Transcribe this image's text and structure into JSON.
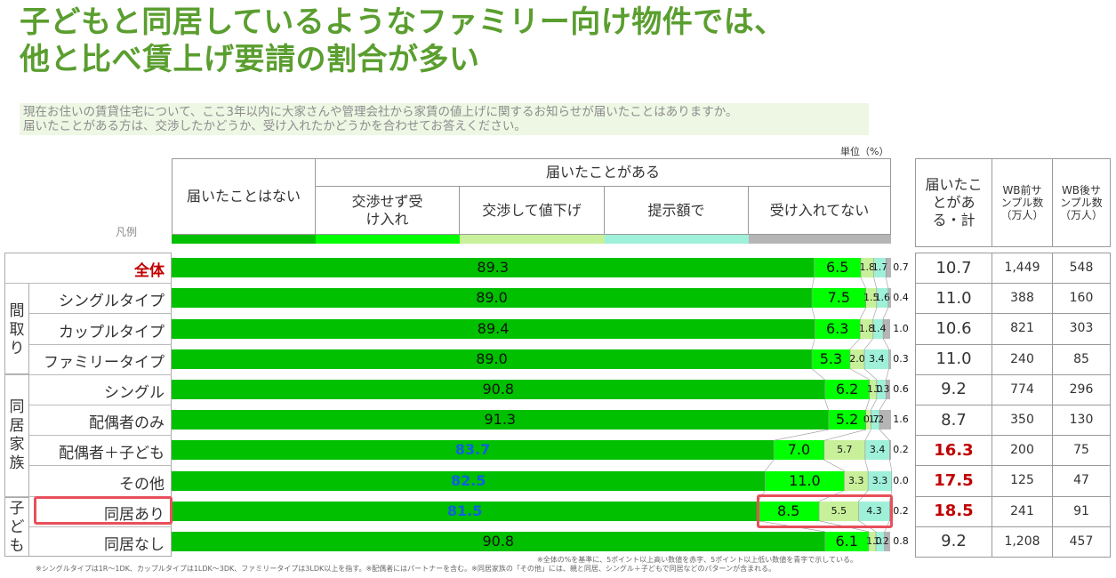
{
  "title_line1": "子どもと同居しているようなファミリー向け物件では、",
  "title_line2": "他と比べ賃上げ要請の割合が多い",
  "subtitle_line1": "現在お住いの賃貸住宅について、ここ3年以内に大家さんや管理会社から家賃の値上げに関するお知らせが届いたことはありますか。",
  "subtitle_line2": "届いたことがある方は、交渉したかどうか、受け入れたかどうかを合わせてお答えください。",
  "unit": "単位（%）",
  "legend_label": "凡例",
  "headers": {
    "not_received": "届いたことはない",
    "received": "届いたことがある",
    "accepted": "交渉せず受け入れ",
    "reduced": "交渉して値下げ",
    "offered": "提示額で",
    "not_accepted": "受け入れてない"
  },
  "table_headers": {
    "total": "届いたことがある・計",
    "before": "WB前サンプル数（万人）",
    "after": "WB後サンプル数（万人）"
  },
  "groups": [
    {
      "label": "間取り"
    },
    {
      "label": "同居家族"
    },
    {
      "label": "子ども"
    }
  ],
  "colors": {
    "not_received": "#00c000",
    "accepted": "#00ff00",
    "reduced": "#c8f09a",
    "offered": "#9ff0d8",
    "not_accepted": "#b5b5b5",
    "highlight": "#e8505b",
    "red_text": "#c00000",
    "blue_text": "#1060e0",
    "title": "#5a9e2f"
  },
  "notes": {
    "note1": "※全体の%を基準に、5ポイント以上高い数値を赤字、5ポイント以上低い数値を青字で示している。",
    "note2": "※シングルタイプは1R〜1DK、カップルタイプは1LDK〜3DK、ファミリータイプは3LDK以上を指す。※配偶者にはパートナーを含む。※同居家族の「その他」には、親と同居、シングル＋子どもで同居などのパターンが含まれる。"
  },
  "chart_data": {
    "type": "bar",
    "stacked": true,
    "xlim": [
      0,
      100
    ],
    "categories": [
      "全体",
      "シングルタイプ",
      "カップルタイプ",
      "ファミリータイプ",
      "シングル",
      "配偶者のみ",
      "配偶者＋子ども",
      "その他",
      "同居あり",
      "同居なし"
    ],
    "series": [
      {
        "name": "届いたことはない",
        "values": [
          89.3,
          89.0,
          89.4,
          89.0,
          90.8,
          91.3,
          83.7,
          82.5,
          81.5,
          90.8
        ]
      },
      {
        "name": "交渉せず受け入れ",
        "values": [
          6.5,
          7.5,
          6.3,
          5.3,
          6.2,
          5.2,
          7.0,
          11.0,
          8.5,
          6.1
        ]
      },
      {
        "name": "交渉して値下げ",
        "values": [
          1.8,
          1.5,
          1.8,
          2.0,
          1.0,
          0.7,
          5.7,
          3.3,
          5.5,
          1.0
        ]
      },
      {
        "name": "提示額で",
        "values": [
          1.7,
          1.6,
          1.4,
          3.4,
          1.3,
          1.2,
          3.4,
          3.3,
          4.3,
          1.2
        ]
      },
      {
        "name": "受け入れてない",
        "values": [
          0.7,
          0.4,
          1.0,
          0.3,
          0.6,
          1.6,
          0.2,
          0.0,
          0.2,
          0.8
        ]
      }
    ],
    "label_colors": [
      "normal",
      "normal",
      "normal",
      "normal",
      "normal",
      "normal",
      "blue",
      "blue",
      "blue",
      "normal"
    ],
    "received_total": [
      "10.7",
      "11.0",
      "10.6",
      "11.0",
      "9.2",
      "8.7",
      "16.3",
      "17.5",
      "18.5",
      "9.2"
    ],
    "received_total_highlight": [
      false,
      false,
      false,
      false,
      false,
      false,
      true,
      true,
      true,
      false
    ],
    "sample_before": [
      "1,449",
      "388",
      "821",
      "240",
      "774",
      "350",
      "200",
      "125",
      "241",
      "1,208"
    ],
    "sample_after": [
      "548",
      "160",
      "303",
      "85",
      "296",
      "130",
      "75",
      "47",
      "91",
      "457"
    ]
  }
}
